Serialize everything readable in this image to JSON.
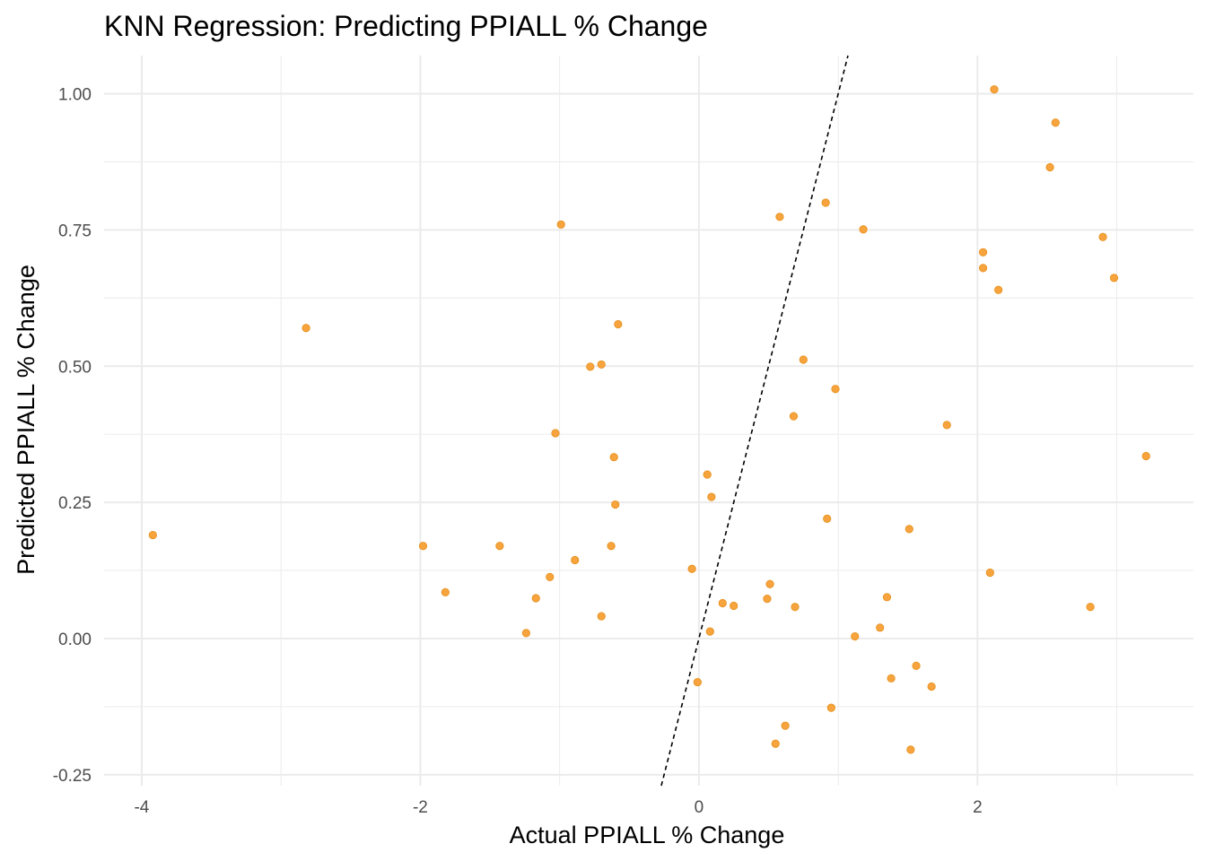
{
  "chart_data": {
    "type": "scatter",
    "title": "KNN Regression: Predicting PPIALL % Change",
    "xlabel": "Actual PPIALL % Change",
    "ylabel": "Predicted PPIALL % Change",
    "xlim": [
      -4.27,
      3.55
    ],
    "ylim": [
      -0.27,
      1.07
    ],
    "xticks": [
      -4,
      -2,
      0,
      2
    ],
    "xtick_labels": [
      "-4",
      "-2",
      "0",
      "2"
    ],
    "yticks": [
      -0.25,
      0.0,
      0.25,
      0.5,
      0.75,
      1.0
    ],
    "ytick_labels": [
      "-0.25",
      "0.00",
      "0.25",
      "0.50",
      "0.75",
      "1.00"
    ],
    "grid": true,
    "point_color": "#F7A33E",
    "reference_line": {
      "style": "dashed",
      "color": "#000000",
      "slope": 1,
      "intercept": 0
    },
    "series": [
      {
        "points": [
          [
            -3.92,
            0.19
          ],
          [
            -2.82,
            0.57
          ],
          [
            -1.98,
            0.17
          ],
          [
            -1.82,
            0.085
          ],
          [
            -1.43,
            0.17
          ],
          [
            -1.24,
            0.01
          ],
          [
            -1.17,
            0.074
          ],
          [
            -1.07,
            0.113
          ],
          [
            -1.03,
            0.377
          ],
          [
            -0.99,
            0.76
          ],
          [
            -0.89,
            0.144
          ],
          [
            -0.78,
            0.499
          ],
          [
            -0.7,
            0.503
          ],
          [
            -0.7,
            0.041
          ],
          [
            -0.63,
            0.17
          ],
          [
            -0.61,
            0.333
          ],
          [
            -0.6,
            0.246
          ],
          [
            -0.58,
            0.577
          ],
          [
            -0.05,
            0.128
          ],
          [
            -0.01,
            -0.08
          ],
          [
            0.06,
            0.301
          ],
          [
            0.08,
            0.013
          ],
          [
            0.09,
            0.26
          ],
          [
            0.17,
            0.065
          ],
          [
            0.25,
            0.06
          ],
          [
            0.49,
            0.073
          ],
          [
            0.51,
            0.1
          ],
          [
            0.55,
            -0.193
          ],
          [
            0.58,
            0.774
          ],
          [
            0.62,
            -0.16
          ],
          [
            0.68,
            0.408
          ],
          [
            0.69,
            0.058
          ],
          [
            0.75,
            0.512
          ],
          [
            0.91,
            0.8
          ],
          [
            0.92,
            0.22
          ],
          [
            0.95,
            -0.127
          ],
          [
            0.98,
            0.458
          ],
          [
            1.12,
            0.004
          ],
          [
            1.18,
            0.751
          ],
          [
            1.3,
            0.02
          ],
          [
            1.35,
            0.076
          ],
          [
            1.38,
            -0.073
          ],
          [
            1.51,
            0.201
          ],
          [
            1.52,
            -0.204
          ],
          [
            1.56,
            -0.05
          ],
          [
            1.67,
            -0.088
          ],
          [
            1.78,
            0.392
          ],
          [
            2.04,
            0.709
          ],
          [
            2.04,
            0.68
          ],
          [
            2.09,
            0.121
          ],
          [
            2.12,
            1.008
          ],
          [
            2.15,
            0.64
          ],
          [
            2.52,
            0.865
          ],
          [
            2.56,
            0.947
          ],
          [
            2.81,
            0.058
          ],
          [
            2.9,
            0.737
          ],
          [
            2.98,
            0.662
          ],
          [
            3.21,
            0.335
          ]
        ]
      }
    ]
  }
}
